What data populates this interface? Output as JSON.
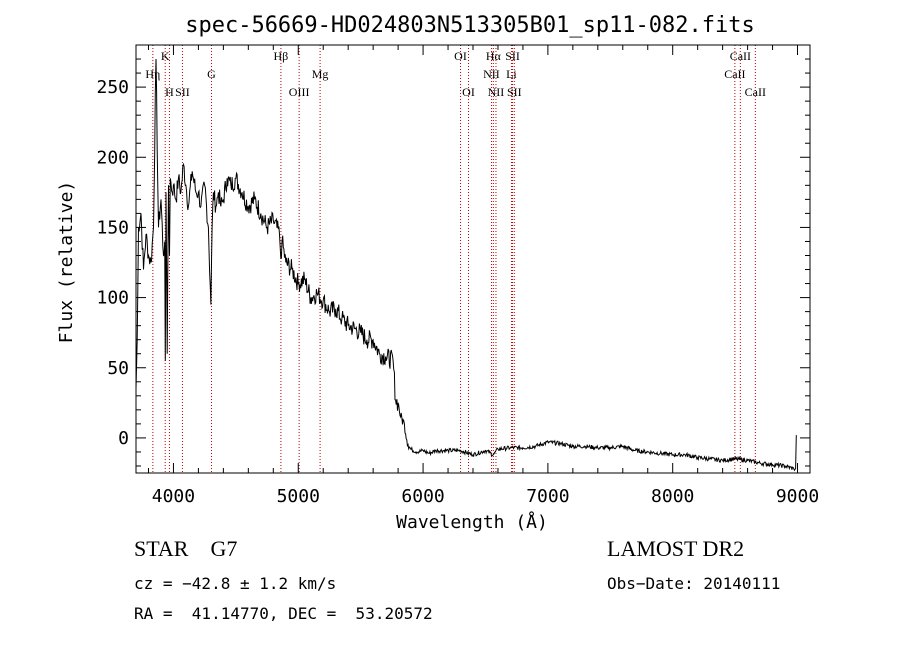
{
  "chart_data": {
    "type": "line",
    "title": "spec-56669-HD024803N513305B01_sp11-082.fits",
    "xlabel": "Wavelength (Å)",
    "ylabel": "Flux (relative)",
    "xlim": [
      3700,
      9100
    ],
    "ylim": [
      -25,
      280
    ],
    "x_ticks": [
      4000,
      5000,
      6000,
      7000,
      8000,
      9000
    ],
    "y_ticks": [
      0,
      50,
      100,
      150,
      200,
      250
    ],
    "grid": false,
    "line_color": "#000000",
    "marker_color": "#c00000",
    "series": [
      {
        "x": [
          3700,
          3710,
          3720,
          3740,
          3760,
          3780,
          3800,
          3820,
          3840,
          3860,
          3880,
          3900,
          3920,
          3930,
          3935,
          3940,
          3950,
          3960,
          3968,
          3975,
          3990,
          4000,
          4020,
          4040,
          4060,
          4080,
          4100,
          4120,
          4150,
          4180,
          4200,
          4220,
          4250,
          4280,
          4300,
          4310,
          4320,
          4340,
          4360,
          4380,
          4400,
          4430,
          4460,
          4500,
          4550,
          4600,
          4650,
          4700,
          4750,
          4800,
          4850,
          4860,
          4870,
          4900,
          4950,
          5000,
          5050,
          5100,
          5150,
          5200,
          5250,
          5300,
          5350,
          5400,
          5450,
          5500,
          5550,
          5600,
          5650,
          5700,
          5760,
          5780,
          5800,
          5820,
          5850,
          5880,
          5900,
          5950,
          6000,
          6050,
          6100,
          6200,
          6300,
          6400,
          6500,
          6563,
          6600,
          6700,
          6800,
          6900,
          7000,
          7100,
          7200,
          7300,
          7400,
          7500,
          7600,
          7700,
          7800,
          7900,
          8000,
          8100,
          8200,
          8300,
          8400,
          8500,
          8600,
          8700,
          8800,
          8900,
          8970,
          8985,
          8990
        ],
        "y": [
          35,
          70,
          150,
          160,
          120,
          145,
          130,
          125,
          150,
          270,
          150,
          170,
          130,
          140,
          55,
          175,
          60,
          180,
          130,
          185,
          175,
          180,
          170,
          185,
          175,
          195,
          180,
          165,
          190,
          175,
          175,
          165,
          180,
          150,
          95,
          150,
          175,
          165,
          175,
          165,
          170,
          185,
          180,
          185,
          175,
          165,
          170,
          160,
          150,
          155,
          145,
          128,
          140,
          125,
          120,
          110,
          113,
          100,
          103,
          98,
          90,
          92,
          85,
          80,
          78,
          75,
          70,
          70,
          60,
          58,
          55,
          27,
          25,
          15,
          10,
          -5,
          -8,
          -10,
          -9,
          -11,
          -9,
          -9,
          -9,
          -12,
          -9,
          -12,
          -8,
          -7,
          -7,
          -6,
          -3,
          -4,
          -6,
          -6,
          -7,
          -7,
          -6,
          -9,
          -10,
          -11,
          -12,
          -12,
          -14,
          -15,
          -16,
          -15,
          -16,
          -18,
          -19,
          -20,
          -22,
          -22,
          2
        ]
      }
    ],
    "lines": [
      {
        "label": "Hη",
        "x": 3835,
        "row": 2
      },
      {
        "label": "H",
        "x": 3968,
        "row": 3
      },
      {
        "label": "K",
        "x": 3934,
        "row": 1
      },
      {
        "label": "SII",
        "x": 4072,
        "row": 3
      },
      {
        "label": "G",
        "x": 4305,
        "row": 2
      },
      {
        "label": "Hβ",
        "x": 4861,
        "row": 1
      },
      {
        "label": "OIII",
        "x": 5007,
        "row": 3
      },
      {
        "label": "Mg",
        "x": 5175,
        "row": 2
      },
      {
        "label": "OI",
        "x": 6300,
        "row": 1
      },
      {
        "label": "OI",
        "x": 6364,
        "row": 3
      },
      {
        "label": "Hα",
        "x": 6563,
        "row": 1
      },
      {
        "label": "NII",
        "x": 6548,
        "row": 2
      },
      {
        "label": "NII",
        "x": 6584,
        "row": 3
      },
      {
        "label": "SII",
        "x": 6717,
        "row": 1
      },
      {
        "label": "Li",
        "x": 6708,
        "row": 2
      },
      {
        "label": "SII",
        "x": 6731,
        "row": 3
      },
      {
        "label": "CaII",
        "x": 8498,
        "row": 2
      },
      {
        "label": "CaII",
        "x": 8542,
        "row": 1
      },
      {
        "label": "CaII",
        "x": 8662,
        "row": 3
      }
    ]
  },
  "info": {
    "object_type": "STAR",
    "subclass": "G7",
    "survey": "LAMOST DR2",
    "cz": "cz = −42.8 ± 1.2 km/s",
    "obs_date": "Obs−Date: 20140111",
    "radec": "RA =  41.14770, DEC =  53.20572"
  }
}
